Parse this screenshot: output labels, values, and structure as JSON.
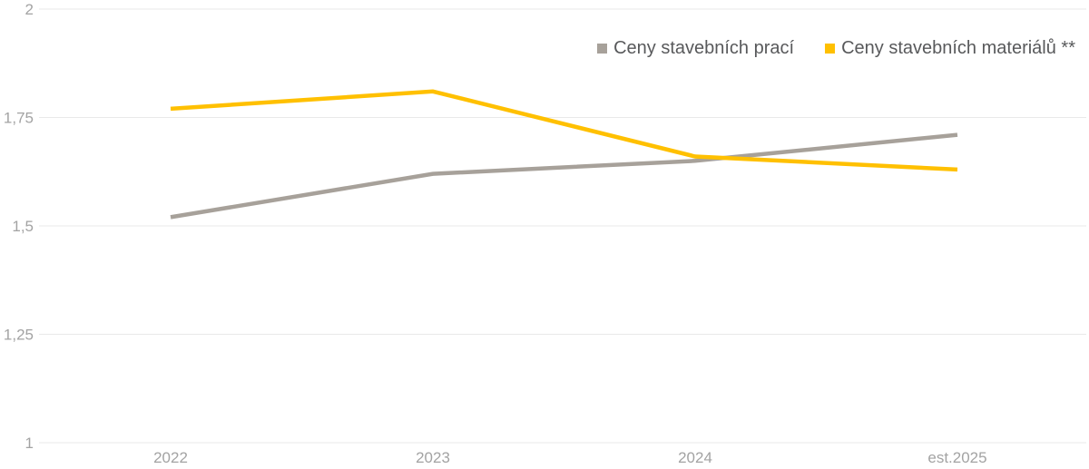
{
  "chart_data": {
    "type": "line",
    "title": "",
    "xlabel": "",
    "ylabel": "",
    "categories": [
      "2022",
      "2023",
      "2024",
      "est.2025"
    ],
    "series": [
      {
        "name": "Ceny stavebních prací",
        "color": "#a7a19a",
        "values": [
          1.52,
          1.62,
          1.65,
          1.71
        ]
      },
      {
        "name": "Ceny stavebních materiálů **",
        "color": "#ffc000",
        "values": [
          1.77,
          1.81,
          1.66,
          1.63
        ]
      }
    ],
    "ylim": [
      1,
      2
    ],
    "yticks": [
      {
        "value": 2,
        "label": "2"
      },
      {
        "value": 1.75,
        "label": "1,75"
      },
      {
        "value": 1.5,
        "label": "1,5"
      },
      {
        "value": 1.25,
        "label": "1,25"
      },
      {
        "value": 1,
        "label": "1"
      }
    ],
    "grid": true,
    "legend_position": "top-right",
    "colors": {
      "gridline": "#e9e9e9",
      "tick_label": "#a3a3a3",
      "legend_text": "#58595b"
    }
  }
}
